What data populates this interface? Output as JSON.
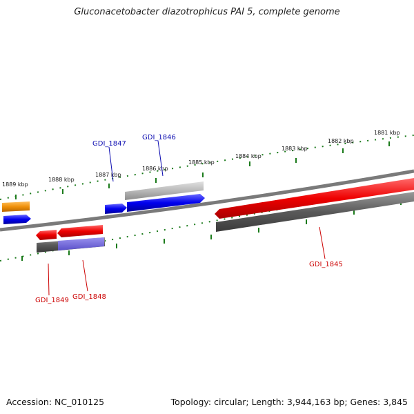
{
  "title": "Gluconacetobacter diazotrophicus PAI 5, complete genome",
  "footer": {
    "accession": "Accession: NC_010125",
    "summary": "Topology: circular; Length: 3,944,163 bp; Genes: 3,845"
  },
  "ruler_labels": [
    "1889 kbp",
    "1888 kbp",
    "1887 kbp",
    "1886 kbp",
    "1885 kbp",
    "1884 kbp",
    "1883 kbp",
    "1882 kbp",
    "1881 kbp"
  ],
  "gene_labels": {
    "gdi_1847": "GDI_1847",
    "gdi_1846": "GDI_1846",
    "gdi_1845": "GDI_1845",
    "gdi_1849": "GDI_1849",
    "gdi_1848": "GDI_1848"
  },
  "colors": {
    "forward_gene": "#0000ee",
    "reverse_gene": "#ee0000",
    "orange_feature": "#f0900a",
    "backbone": "#7a7a7a",
    "ruler_tick": "#1a7a1a",
    "forward_label": "#0a0ab0",
    "reverse_label": "#cc0000"
  }
}
